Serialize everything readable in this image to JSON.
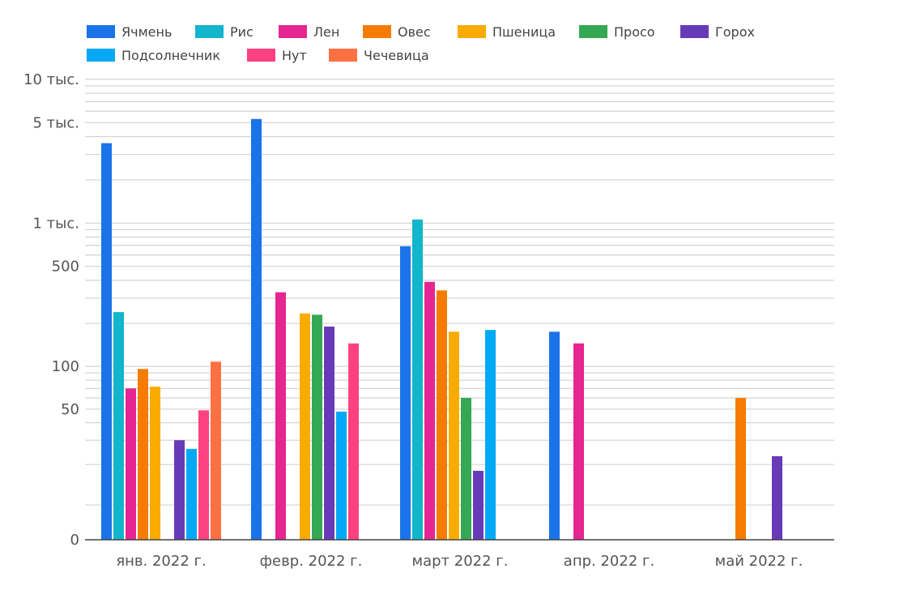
{
  "chart_data": {
    "type": "bar",
    "y_scale": "log",
    "grid": true,
    "legend_placement": "top",
    "categories": [
      "янв. 2022 г.",
      "февр. 2022 г.",
      "март 2022 г.",
      "апр. 2022 г.",
      "май 2022 г."
    ],
    "y_ticks": [
      {
        "value": 0,
        "label": "0"
      },
      {
        "value": 50,
        "label": "50"
      },
      {
        "value": 100,
        "label": "100"
      },
      {
        "value": 500,
        "label": "500"
      },
      {
        "value": 1000,
        "label": "1 тыс."
      },
      {
        "value": 5000,
        "label": "5 тыс."
      },
      {
        "value": 10000,
        "label": "10 тыс."
      }
    ],
    "series": [
      {
        "name": "Ячмень",
        "color": "#1a73e8",
        "values": [
          3600,
          5300,
          690,
          175,
          null
        ]
      },
      {
        "name": "Рис",
        "color": "#12b5cb",
        "values": [
          240,
          null,
          1060,
          null,
          null
        ]
      },
      {
        "name": "Лен",
        "color": "#e52592",
        "values": [
          70,
          330,
          390,
          145,
          null
        ]
      },
      {
        "name": "Овес",
        "color": "#f57c00",
        "values": [
          96,
          null,
          340,
          null,
          60
        ]
      },
      {
        "name": "Пшеница",
        "color": "#f9ab00",
        "values": [
          72,
          235,
          175,
          null,
          null
        ]
      },
      {
        "name": "Просо",
        "color": "#34a853",
        "values": [
          null,
          230,
          60,
          null,
          null
        ]
      },
      {
        "name": "Горох",
        "color": "#673ab7",
        "values": [
          30,
          190,
          18,
          null,
          23
        ]
      },
      {
        "name": "Подсолнечник",
        "color": "#03a9f4",
        "values": [
          26,
          48,
          180,
          null,
          null
        ]
      },
      {
        "name": "Нут",
        "color": "#ff4081",
        "values": [
          49,
          145,
          null,
          null,
          null
        ]
      },
      {
        "name": "Чечевица",
        "color": "#ff7043",
        "values": [
          108,
          null,
          null,
          null,
          null
        ]
      }
    ]
  }
}
